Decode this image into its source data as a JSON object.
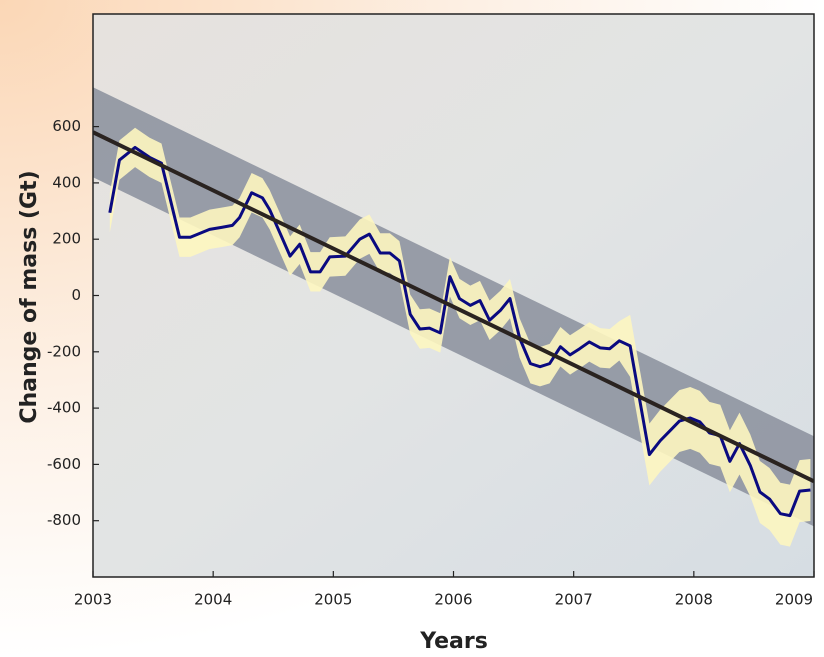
{
  "chart_data": {
    "type": "line",
    "xlabel": "Years",
    "ylabel": "Change of mass (Gt)",
    "xlim": [
      2003,
      2009
    ],
    "xticks": [
      2003,
      2004,
      2005,
      2006,
      2007,
      2008,
      2009
    ],
    "ylim": [
      -1000,
      1000
    ],
    "yticks": [
      -800,
      -600,
      -400,
      -200,
      0,
      200,
      400,
      600
    ],
    "x": [
      2003.14,
      2003.22,
      2003.35,
      2003.47,
      2003.57,
      2003.72,
      2003.81,
      2003.97,
      2004.07,
      2004.16,
      2004.22,
      2004.32,
      2004.41,
      2004.47,
      2004.56,
      2004.64,
      2004.72,
      2004.81,
      2004.89,
      2004.97,
      2005.1,
      2005.22,
      2005.3,
      2005.39,
      2005.47,
      2005.55,
      2005.64,
      2005.72,
      2005.8,
      2005.89,
      2005.97,
      2006.05,
      2006.14,
      2006.22,
      2006.3,
      2006.39,
      2006.47,
      2006.55,
      2006.64,
      2006.72,
      2006.8,
      2006.89,
      2006.97,
      2007.05,
      2007.13,
      2007.22,
      2007.3,
      2007.38,
      2007.47,
      2007.63,
      2007.72,
      2007.8,
      2007.88,
      2007.97,
      2008.05,
      2008.13,
      2008.22,
      2008.3,
      2008.38,
      2008.47,
      2008.55,
      2008.63,
      2008.72,
      2008.8,
      2008.88,
      2008.97
    ],
    "series": [
      {
        "color": "#0a0a80",
        "error_color": "#fdf6c0",
        "values": [
          294,
          481,
          526,
          491,
          470,
          207,
          207,
          235,
          242,
          249,
          277,
          365,
          347,
          305,
          218,
          140,
          182,
          84,
          84,
          137,
          140,
          200,
          218,
          151,
          151,
          123,
          -67,
          -119,
          -116,
          -133,
          67,
          -11,
          -35,
          -18,
          -88,
          -53,
          -11,
          -151,
          -242,
          -253,
          -242,
          -182,
          -211,
          -189,
          -165,
          -186,
          -189,
          -161,
          -179,
          -565,
          -516,
          -481,
          -446,
          -435,
          -449,
          -488,
          -498,
          -589,
          -526,
          -604,
          -698,
          -723,
          -775,
          -782,
          -695,
          -691
        ],
        "errors": [
          70,
          70,
          70,
          70,
          70,
          70,
          70,
          70,
          70,
          70,
          70,
          70,
          70,
          70,
          70,
          70,
          70,
          70,
          70,
          70,
          70,
          70,
          70,
          70,
          70,
          70,
          70,
          70,
          70,
          70,
          70,
          70,
          70,
          70,
          70,
          70,
          70,
          70,
          70,
          70,
          70,
          70,
          70,
          70,
          70,
          70,
          70,
          70,
          110,
          110,
          110,
          110,
          110,
          110,
          110,
          110,
          110,
          110,
          110,
          110,
          110,
          110,
          110,
          110,
          110,
          110
        ]
      }
    ],
    "trend": {
      "x": [
        2003,
        2009
      ],
      "values": [
        580,
        -660
      ],
      "band": 160,
      "color": "#2a2320",
      "band_color": "#8a8f9c"
    }
  }
}
